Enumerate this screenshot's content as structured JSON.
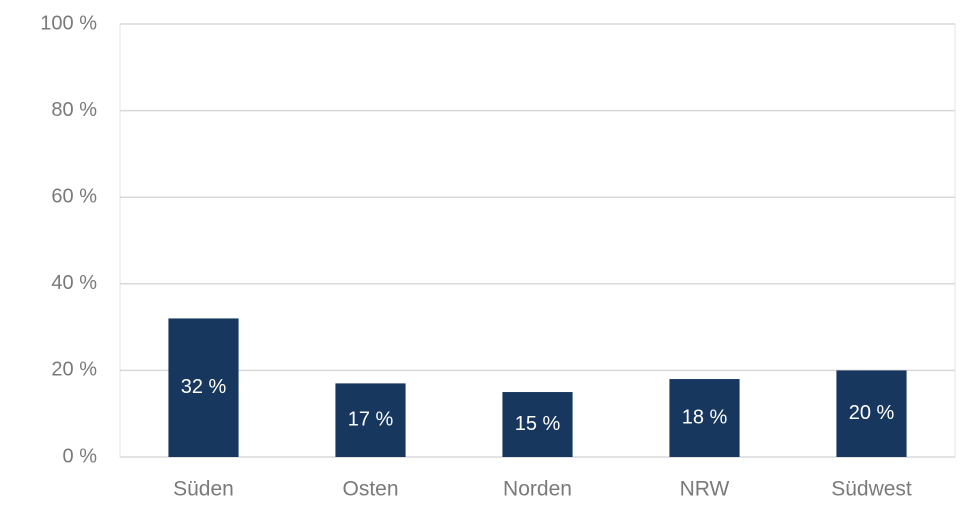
{
  "chart_data": {
    "type": "bar",
    "categories": [
      "Süden",
      "Osten",
      "Norden",
      "NRW",
      "Südwest"
    ],
    "values": [
      32,
      17,
      15,
      18,
      20
    ],
    "value_labels": [
      "32 %",
      "17 %",
      "15 %",
      "18 %",
      "20 %"
    ],
    "color": "#17375e",
    "ylim": [
      0,
      100
    ],
    "yticks": [
      {
        "value": 0,
        "label": "0 %"
      },
      {
        "value": 20,
        "label": "20 %"
      },
      {
        "value": 40,
        "label": "40 %"
      },
      {
        "value": 60,
        "label": "60 %"
      },
      {
        "value": 80,
        "label": "80 %"
      },
      {
        "value": 100,
        "label": "100 %"
      }
    ],
    "grid": true
  }
}
